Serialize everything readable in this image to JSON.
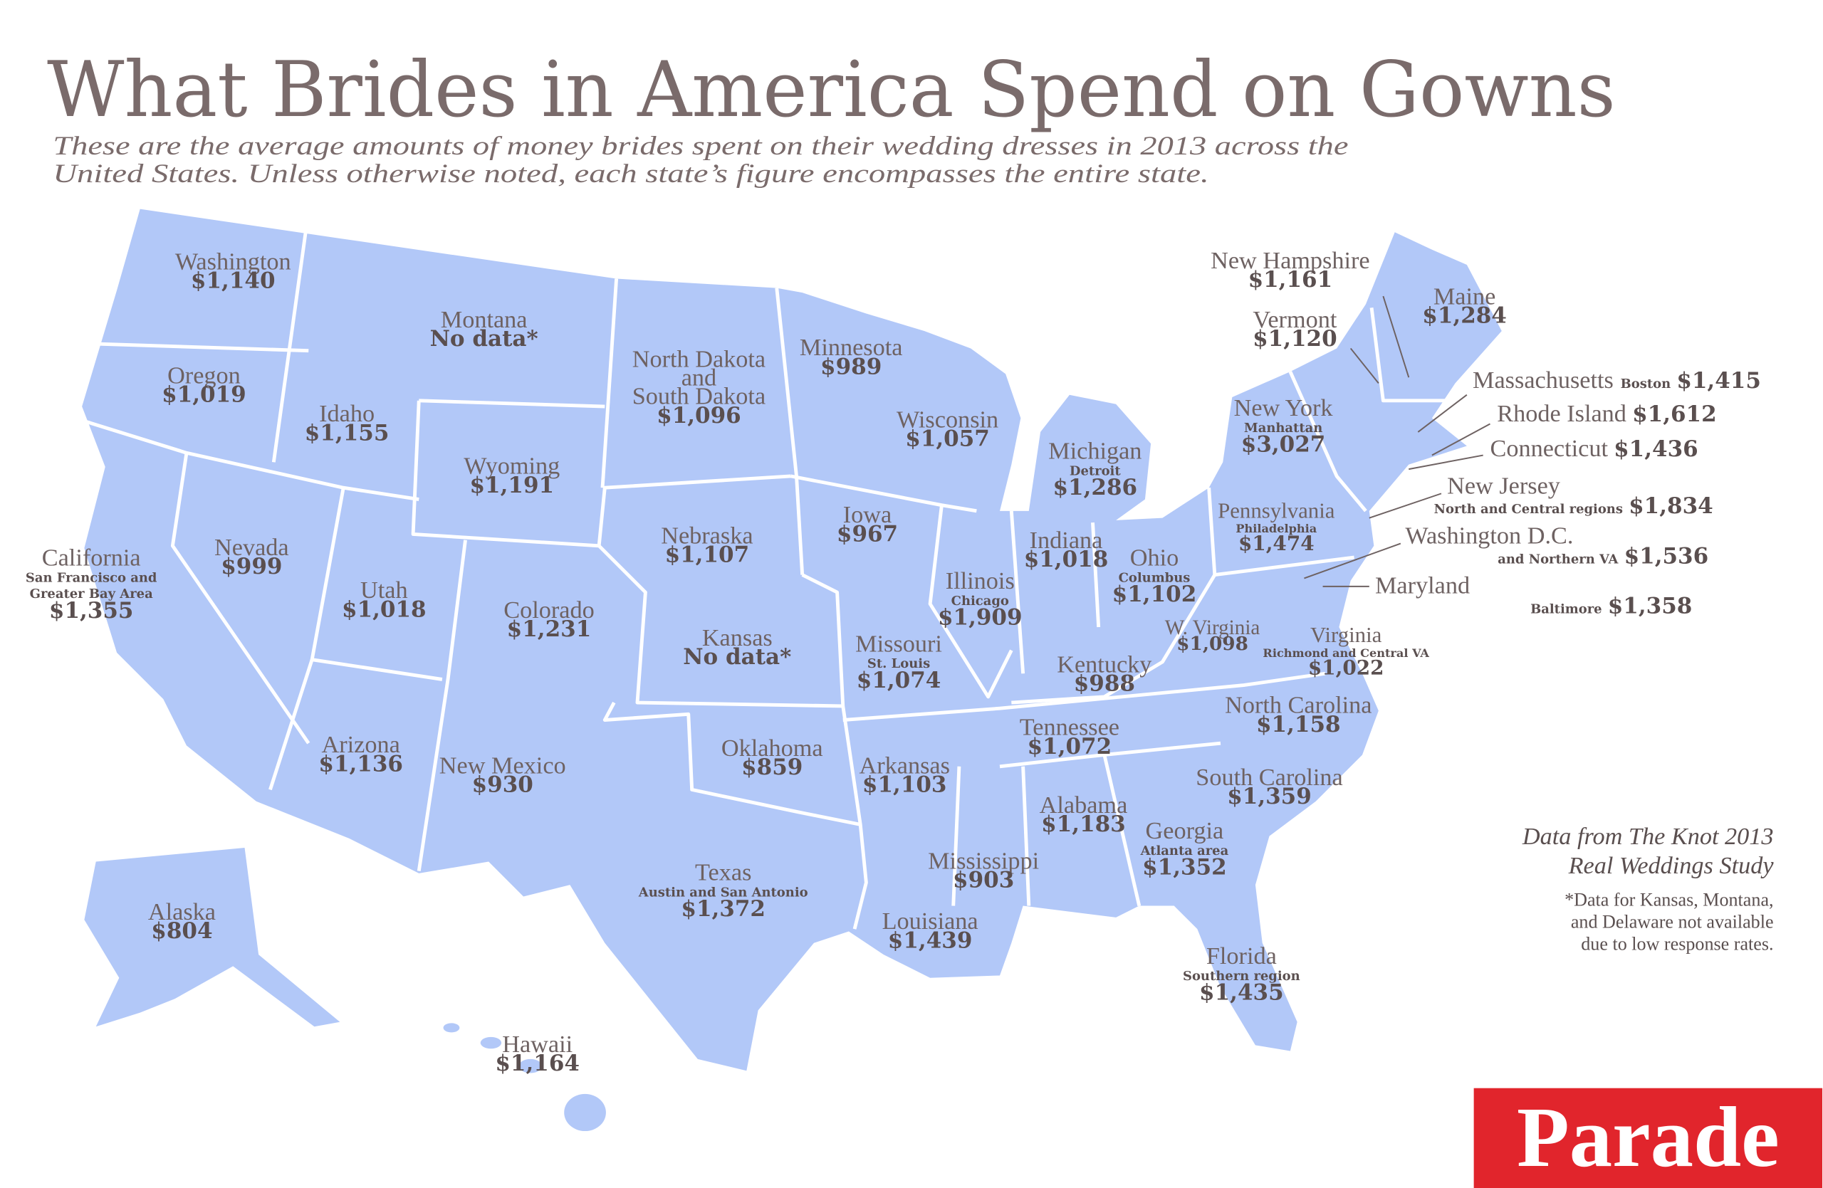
{
  "header": {
    "title": "What Brides in America Spend on Gowns",
    "subtitle": [
      "These are the average amounts of money brides spent on their wedding dresses in 2013 across the",
      "United States. Unless otherwise noted, each state’s figure encompasses the entire state."
    ]
  },
  "states": [
    {
      "name": "Washington",
      "value": "$1,140"
    },
    {
      "name": "Oregon",
      "value": "$1,019"
    },
    {
      "name": "Idaho",
      "value": "$1,155"
    },
    {
      "name": "Montana",
      "value": "No data*"
    },
    {
      "name": "Wyoming",
      "value": "$1,191"
    },
    {
      "name": [
        "North Dakota",
        "and",
        "South Dakota"
      ],
      "value": "$1,096"
    },
    {
      "name": "Minnesota",
      "value": "$989"
    },
    {
      "name": "Wisconsin",
      "value": "$1,057"
    },
    {
      "name": "Michigan",
      "note": "Detroit",
      "value": "$1,286"
    },
    {
      "name": "Iowa",
      "value": "$967"
    },
    {
      "name": "Nebraska",
      "value": "$1,107"
    },
    {
      "name": "Nevada",
      "value": "$999"
    },
    {
      "name": "Utah",
      "value": "$1,018"
    },
    {
      "name": "Colorado",
      "value": "$1,231"
    },
    {
      "name": "California",
      "note": [
        "San Francisco and",
        "Greater Bay Area"
      ],
      "value": "$1,355"
    },
    {
      "name": "Kansas",
      "value": "No data*"
    },
    {
      "name": "Illinois",
      "note": "Chicago",
      "value": "$1,909"
    },
    {
      "name": "Indiana",
      "value": "$1,018"
    },
    {
      "name": "Ohio",
      "note": "Columbus",
      "value": "$1,102"
    },
    {
      "name": "Missouri",
      "note": "St. Louis",
      "value": "$1,074"
    },
    {
      "name": "Kentucky",
      "value": "$988"
    },
    {
      "name": "W. Virginia",
      "value": "$1,098"
    },
    {
      "name": "Virginia",
      "note": "Richmond and Central VA",
      "value": "$1,022"
    },
    {
      "name": "Arizona",
      "value": "$1,136"
    },
    {
      "name": "New Mexico",
      "value": "$930"
    },
    {
      "name": "Oklahoma",
      "value": "$859"
    },
    {
      "name": "Arkansas",
      "value": "$1,103"
    },
    {
      "name": "Tennessee",
      "value": "$1,072"
    },
    {
      "name": "North Carolina",
      "value": "$1,158"
    },
    {
      "name": "South Carolina",
      "value": "$1,359"
    },
    {
      "name": "Alabama",
      "value": "$1,183"
    },
    {
      "name": "Georgia",
      "note": "Atlanta area",
      "value": "$1,352"
    },
    {
      "name": "Mississippi",
      "value": "$903"
    },
    {
      "name": "Texas",
      "note": "Austin and San Antonio",
      "value": "$1,372"
    },
    {
      "name": "Louisiana",
      "value": "$1,439"
    },
    {
      "name": "Florida",
      "note": "Southern region",
      "value": "$1,435"
    },
    {
      "name": "Alaska",
      "value": "$804"
    },
    {
      "name": "Hawaii",
      "value": "$1,164"
    },
    {
      "name": "Pennsylvania",
      "note": "Philadelphia",
      "value": "$1,474"
    },
    {
      "name": "New York",
      "note": "Manhattan",
      "value": "$3,027"
    },
    {
      "name": "New Hampshire",
      "value": "$1,161"
    },
    {
      "name": "Vermont",
      "value": "$1,120"
    },
    {
      "name": "Maine",
      "value": "$1,284"
    }
  ],
  "callouts": [
    {
      "name": "Massachusetts",
      "note": "Boston",
      "value": "$1,415"
    },
    {
      "name": "Rhode Island",
      "value": "$1,612"
    },
    {
      "name": "Connecticut",
      "value": "$1,436"
    },
    {
      "name": "New Jersey",
      "note": "North and Central regions",
      "value": "$1,834"
    },
    {
      "name": "Washington D.C.",
      "note": "and Northern VA",
      "value": "$1,536"
    },
    {
      "name": "Maryland",
      "note": "Baltimore",
      "value": "$1,358"
    }
  ],
  "source": {
    "title": [
      "Data from The Knot 2013",
      "Real Weddings Study"
    ],
    "note": [
      "*Data for Kansas, Montana,",
      "and Delaware not available",
      "due to low response rates."
    ]
  },
  "logo": "Parade"
}
